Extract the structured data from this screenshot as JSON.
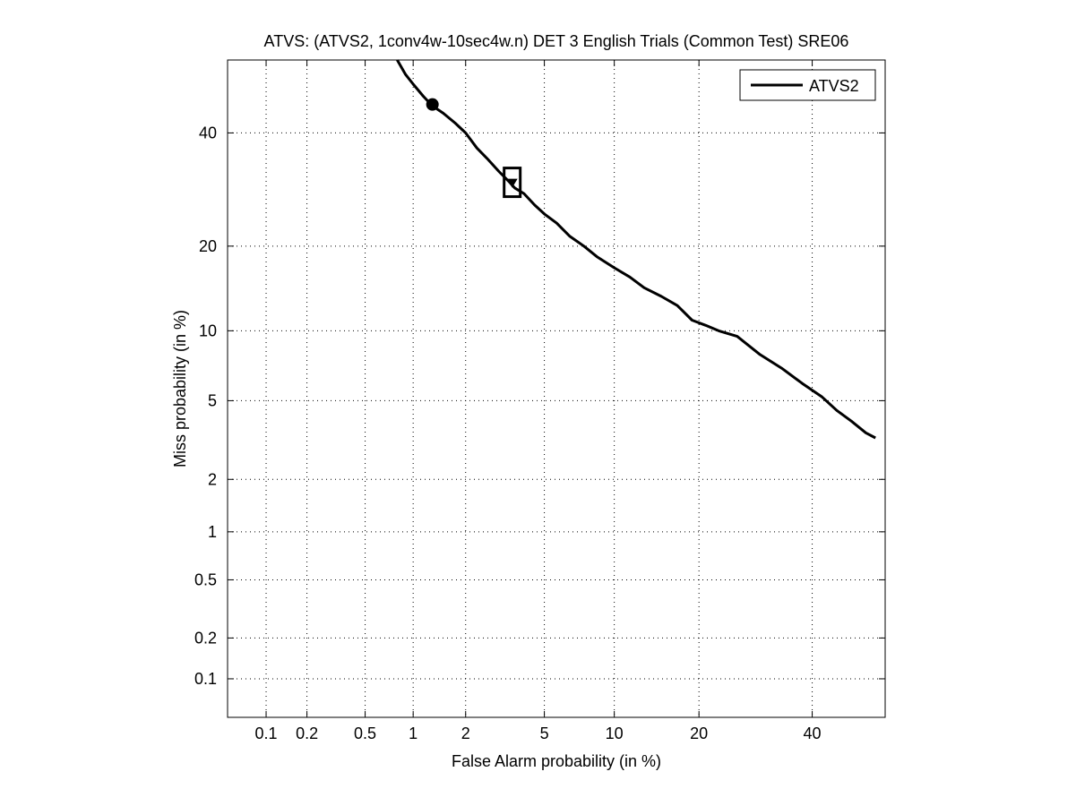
{
  "chart_data": {
    "type": "line",
    "title": "ATVS: (ATVS2, 1conv4w-10sec4w.n) DET 3 English Trials (Common Test) SRE06",
    "xlabel": "False Alarm probability (in %)",
    "ylabel": "Miss probability (in %)",
    "x_scale": "probit",
    "y_scale": "probit",
    "xlim": [
      0.05,
      55
    ],
    "ylim": [
      0.05,
      55
    ],
    "x_ticks": [
      {
        "value": 0.1,
        "label": "0.1"
      },
      {
        "value": 0.2,
        "label": "0.2"
      },
      {
        "value": 0.5,
        "label": "0.5"
      },
      {
        "value": 1,
        "label": "1"
      },
      {
        "value": 2,
        "label": "2"
      },
      {
        "value": 5,
        "label": "5"
      },
      {
        "value": 10,
        "label": "10"
      },
      {
        "value": 20,
        "label": "20"
      },
      {
        "value": 40,
        "label": "40"
      }
    ],
    "y_ticks": [
      {
        "value": 0.1,
        "label": "0.1"
      },
      {
        "value": 0.2,
        "label": "0.2"
      },
      {
        "value": 0.5,
        "label": "0.5"
      },
      {
        "value": 1,
        "label": "1"
      },
      {
        "value": 2,
        "label": "2"
      },
      {
        "value": 5,
        "label": "5"
      },
      {
        "value": 10,
        "label": "10"
      },
      {
        "value": 20,
        "label": "20"
      },
      {
        "value": 40,
        "label": "40"
      }
    ],
    "grid": true,
    "legend": {
      "position": "top-right",
      "entries": [
        "ATVS2"
      ]
    },
    "series": [
      {
        "name": "ATVS2",
        "color": "#000000",
        "points": [
          [
            0.8,
            55
          ],
          [
            0.9,
            52
          ],
          [
            1.0,
            50
          ],
          [
            1.15,
            47.5
          ],
          [
            1.3,
            45.5
          ],
          [
            1.5,
            44
          ],
          [
            1.75,
            42
          ],
          [
            2.0,
            40
          ],
          [
            2.3,
            37
          ],
          [
            2.6,
            35
          ],
          [
            3.0,
            32.5
          ],
          [
            3.4,
            30.5
          ],
          [
            3.6,
            29.5
          ],
          [
            4.0,
            28.5
          ],
          [
            4.5,
            26.5
          ],
          [
            5.0,
            25
          ],
          [
            5.7,
            23.5
          ],
          [
            6.5,
            21.5
          ],
          [
            7.5,
            20
          ],
          [
            8.5,
            18.5
          ],
          [
            10,
            17
          ],
          [
            11.5,
            15.8
          ],
          [
            13,
            14.5
          ],
          [
            15,
            13.5
          ],
          [
            17,
            12.5
          ],
          [
            19,
            11
          ],
          [
            21,
            10.5
          ],
          [
            23,
            10
          ],
          [
            26,
            9.5
          ],
          [
            30,
            8
          ],
          [
            34,
            7
          ],
          [
            38,
            6
          ],
          [
            42,
            5.2
          ],
          [
            45,
            4.5
          ],
          [
            48,
            4
          ],
          [
            51,
            3.5
          ],
          [
            53,
            3.3
          ]
        ]
      }
    ],
    "markers": [
      {
        "shape": "circle",
        "x": 1.3,
        "y": 45.8
      },
      {
        "shape": "square",
        "x": 3.5,
        "y": 30.5
      },
      {
        "shape": "triangle",
        "x": 3.5,
        "y": 30.5
      }
    ]
  }
}
